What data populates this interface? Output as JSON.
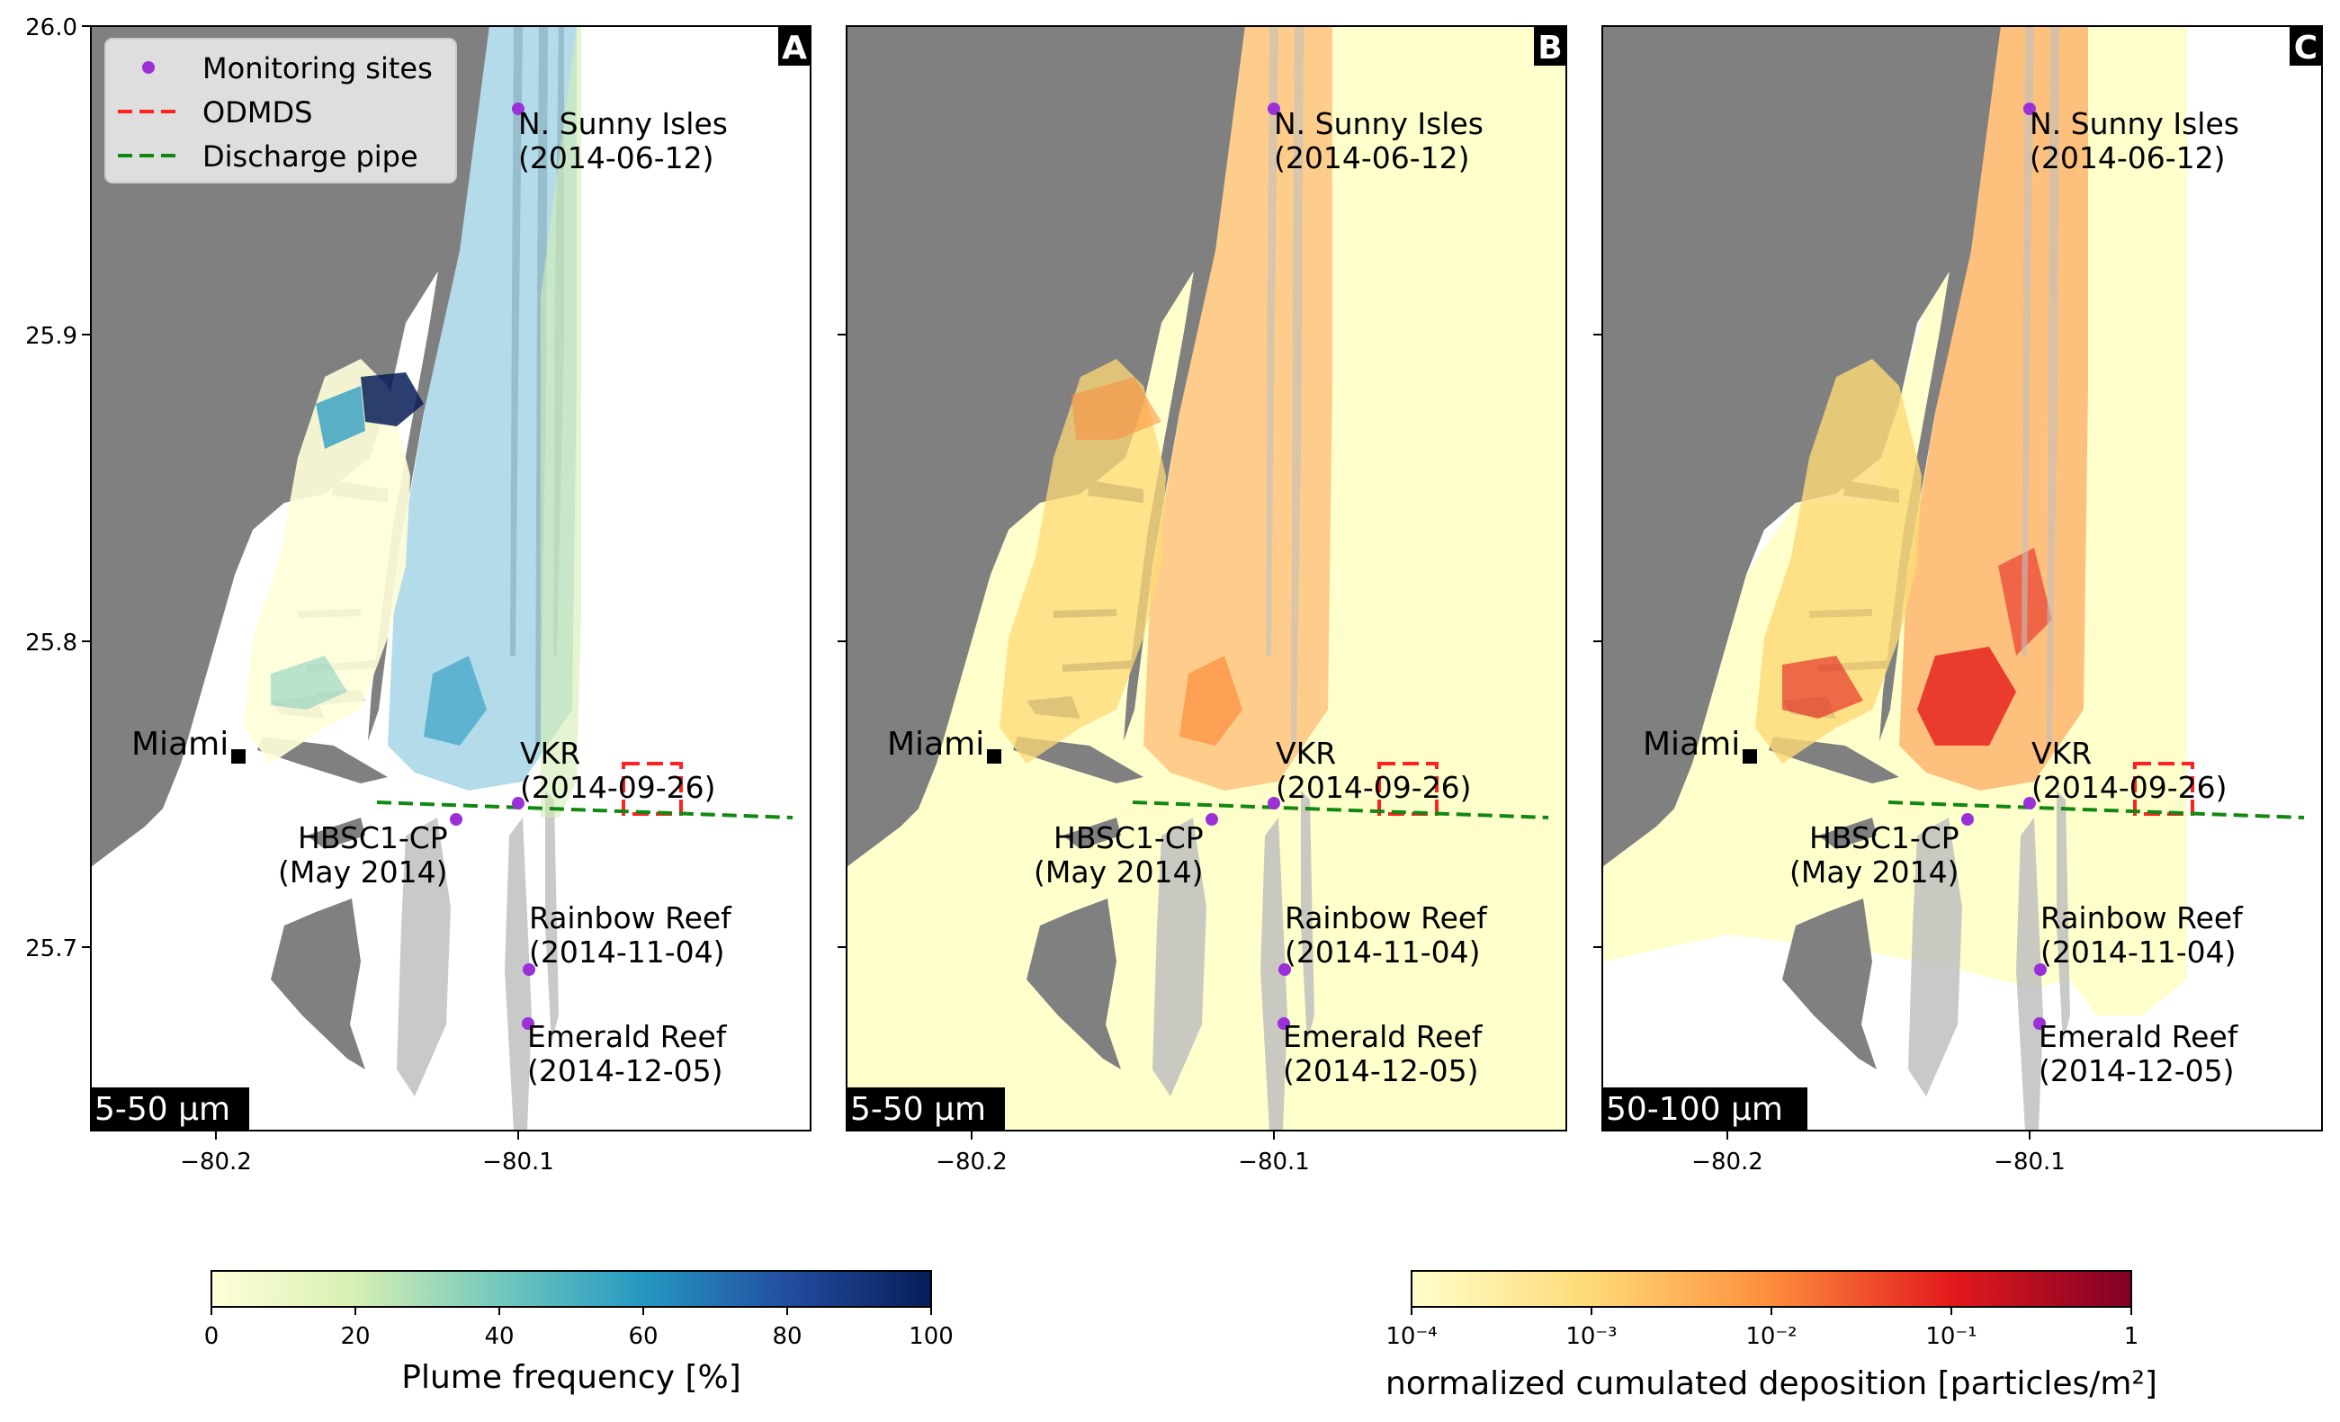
{
  "y_ticks": [
    "26.0",
    "25.9",
    "25.8",
    "25.7"
  ],
  "x_ticks": [
    "−80.2",
    "−80.1"
  ],
  "panels": [
    {
      "letter": "A",
      "size_label": "5-50 μm",
      "field": "plume"
    },
    {
      "letter": "B",
      "size_label": "5-50 μm",
      "field": "deposition"
    },
    {
      "letter": "C",
      "size_label": "50-100 μm",
      "field": "deposition"
    }
  ],
  "sites": [
    {
      "name": "N. Sunny Isles",
      "date": "(2014-06-12)"
    },
    {
      "name": "VKR",
      "date": "(2014-09-26)"
    },
    {
      "name": "HBSC1-CP",
      "date": "(May 2014)"
    },
    {
      "name": "Rainbow Reef",
      "date": "(2014-11-04)"
    },
    {
      "name": "Emerald Reef",
      "date": "(2014-12-05)"
    }
  ],
  "city_label": "Miami",
  "legend": {
    "monitoring_sites": "Monitoring sites",
    "odmds": "ODMDS",
    "discharge_pipe": "Discharge pipe"
  },
  "colorbar_plume": {
    "label": "Plume frequency [%]",
    "ticks": [
      "0",
      "20",
      "40",
      "60",
      "80",
      "100"
    ]
  },
  "colorbar_deposition": {
    "label": "normalized cumulated deposition [particles/m²]",
    "ticks": [
      "10⁻⁴",
      "10⁻³",
      "10⁻²",
      "10⁻¹",
      "1"
    ]
  },
  "colors": {
    "land": "#808080",
    "reef": "#c0c0c0",
    "site_marker": "#9b30d9",
    "odmds": "#ff2020",
    "pipe": "#118811"
  }
}
